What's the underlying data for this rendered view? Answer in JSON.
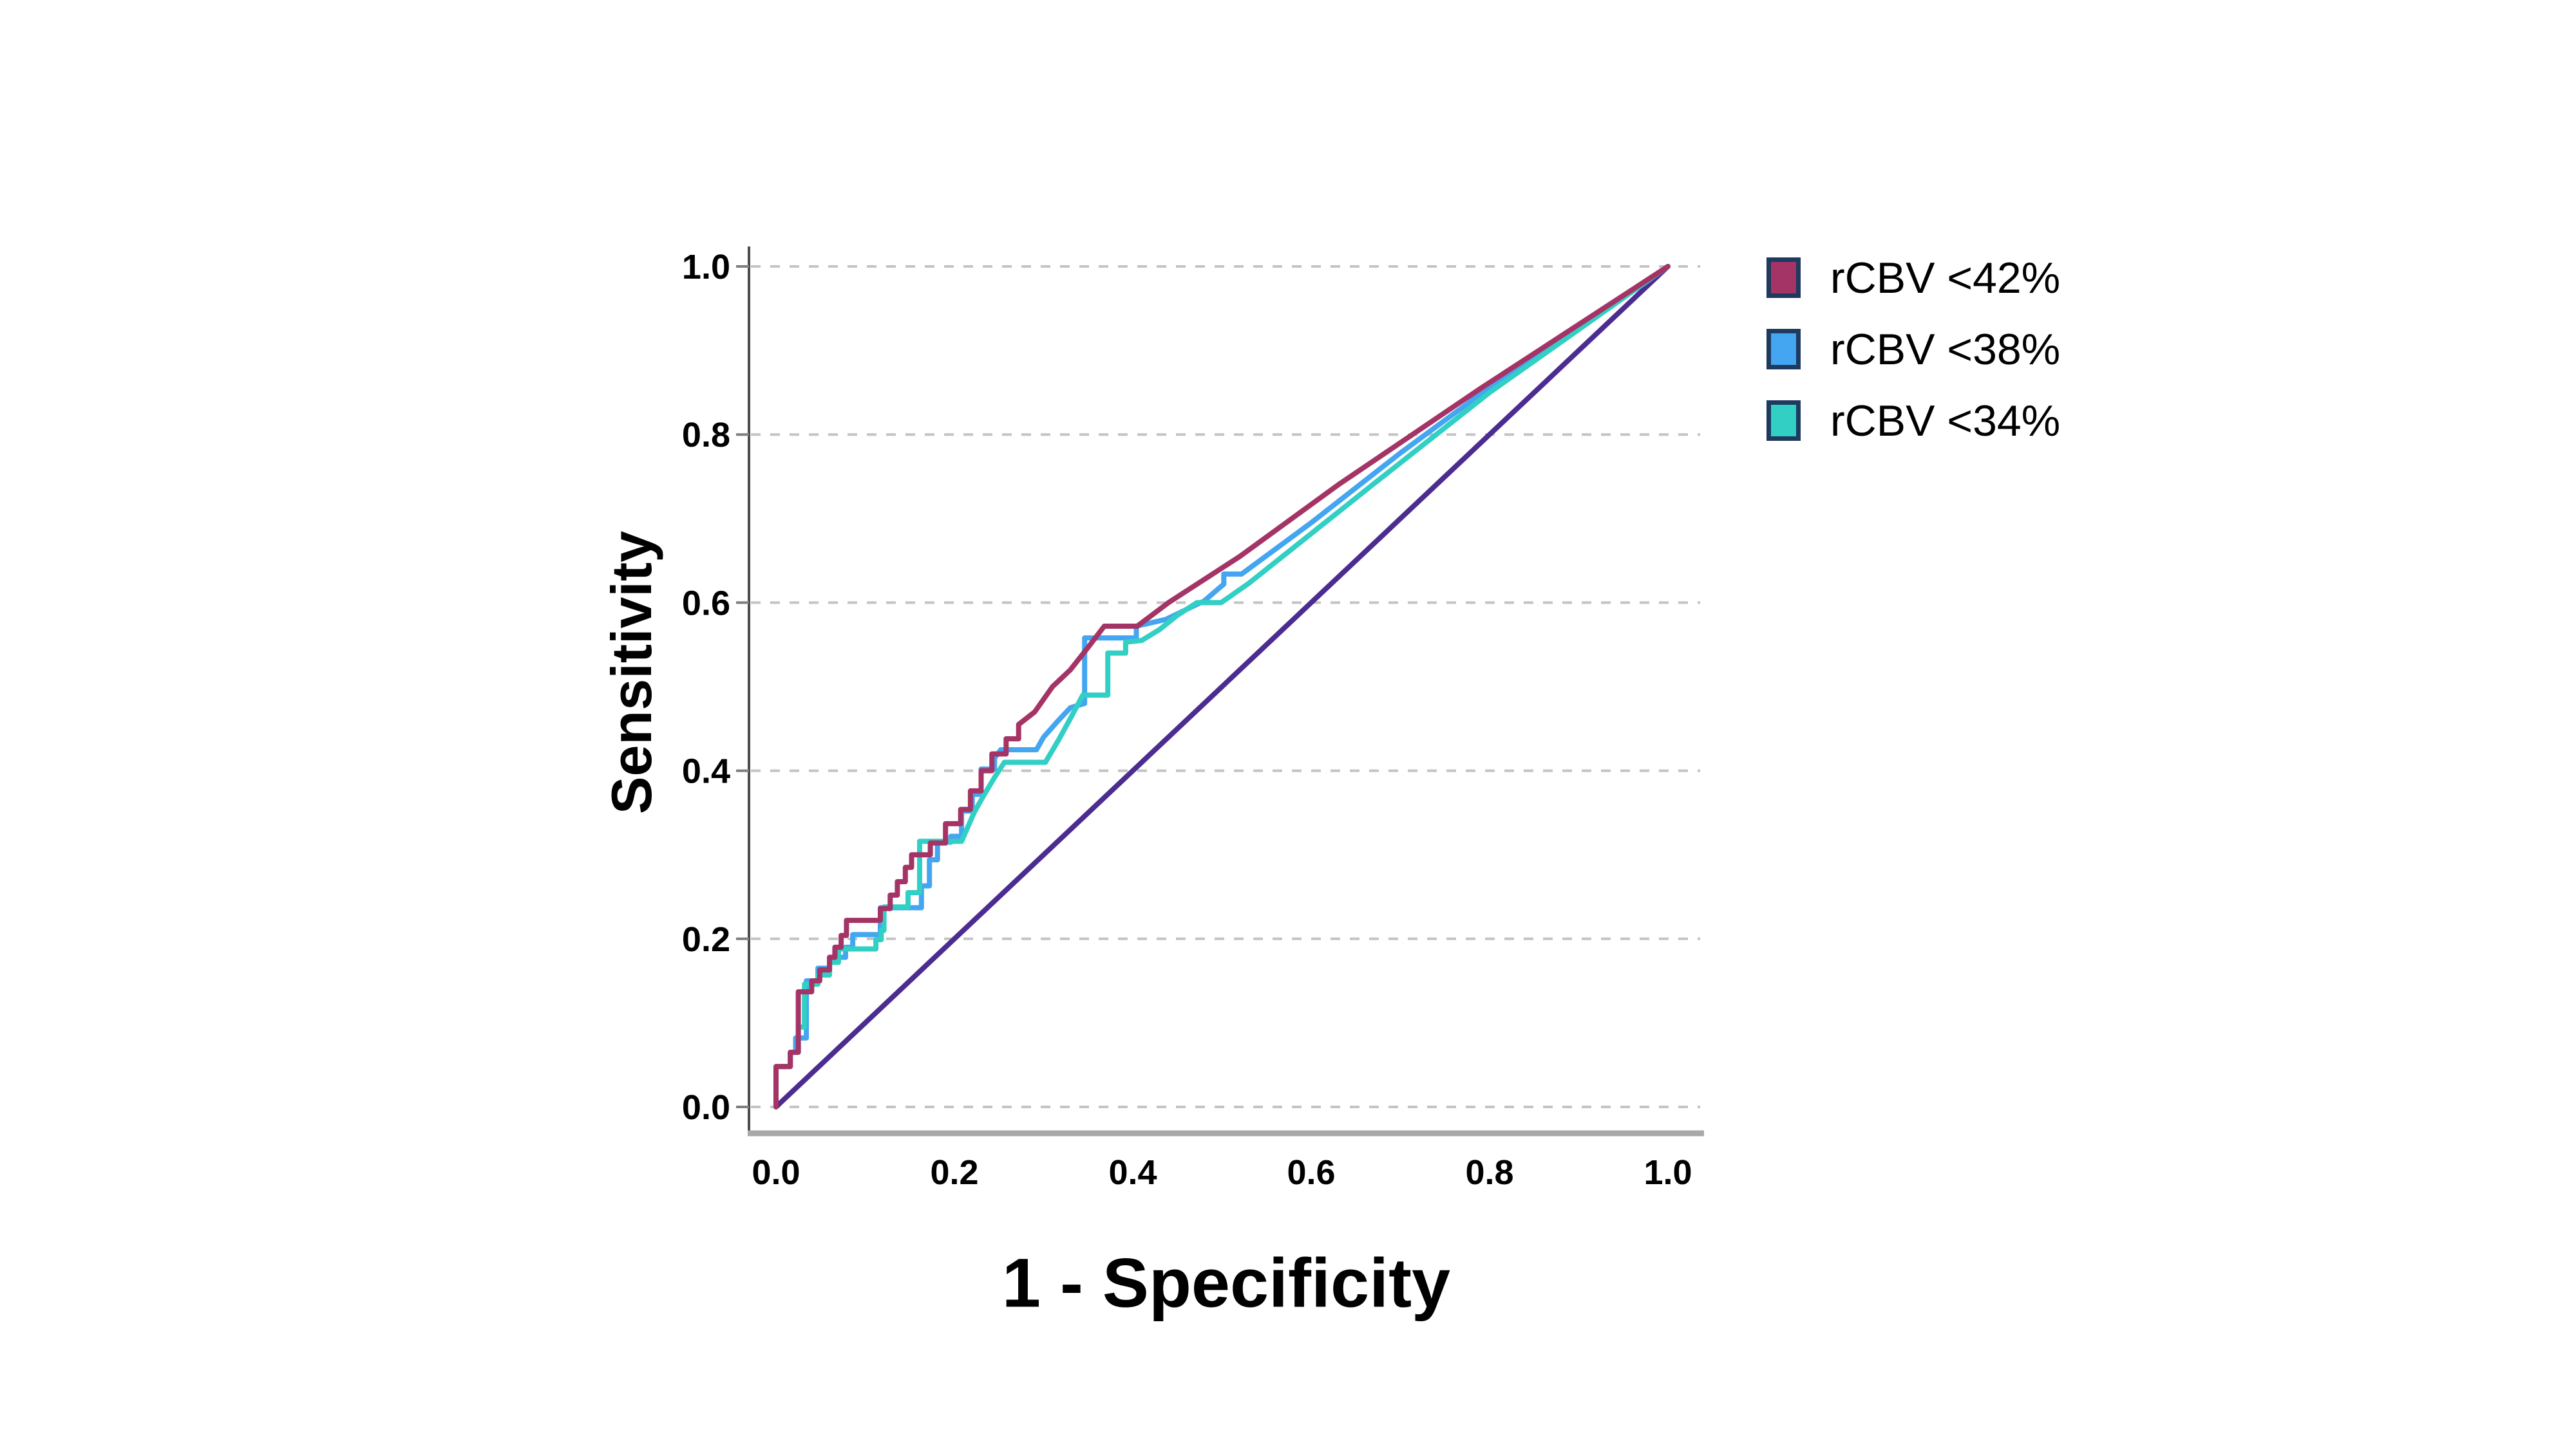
{
  "chart_data": {
    "type": "line",
    "subtype": "roc-curve",
    "title": "",
    "xlabel": "1 - Specificity",
    "ylabel": "Sensitivity",
    "xlim": [
      0.0,
      1.0
    ],
    "ylim": [
      0.0,
      1.0
    ],
    "x_tick_labels": [
      "0.0",
      "0.2",
      "0.4",
      "0.6",
      "0.8",
      "1.0"
    ],
    "y_tick_labels": [
      "0.0",
      "0.2",
      "0.4",
      "0.6",
      "0.8",
      "1.0"
    ],
    "grid": "horizontal dashed gridlines at every y tick",
    "legend_position": "right of plot, top",
    "series": [
      {
        "name": "rCBV <42%",
        "color": "#A43465",
        "points": [
          [
            0,
            0
          ],
          [
            0,
            0.048
          ],
          [
            0.016,
            0.048
          ],
          [
            0.016,
            0.065
          ],
          [
            0.025,
            0.065
          ],
          [
            0.025,
            0.137
          ],
          [
            0.04,
            0.137
          ],
          [
            0.04,
            0.15
          ],
          [
            0.049,
            0.15
          ],
          [
            0.049,
            0.163
          ],
          [
            0.06,
            0.163
          ],
          [
            0.06,
            0.178
          ],
          [
            0.066,
            0.178
          ],
          [
            0.066,
            0.19
          ],
          [
            0.073,
            0.19
          ],
          [
            0.073,
            0.204
          ],
          [
            0.079,
            0.204
          ],
          [
            0.079,
            0.222
          ],
          [
            0.117,
            0.222
          ],
          [
            0.117,
            0.236
          ],
          [
            0.128,
            0.236
          ],
          [
            0.128,
            0.252
          ],
          [
            0.136,
            0.252
          ],
          [
            0.136,
            0.268
          ],
          [
            0.145,
            0.268
          ],
          [
            0.145,
            0.285
          ],
          [
            0.152,
            0.285
          ],
          [
            0.152,
            0.3
          ],
          [
            0.173,
            0.3
          ],
          [
            0.173,
            0.314
          ],
          [
            0.19,
            0.314
          ],
          [
            0.19,
            0.337
          ],
          [
            0.207,
            0.337
          ],
          [
            0.207,
            0.354
          ],
          [
            0.218,
            0.354
          ],
          [
            0.218,
            0.376
          ],
          [
            0.23,
            0.376
          ],
          [
            0.23,
            0.4
          ],
          [
            0.242,
            0.4
          ],
          [
            0.242,
            0.42
          ],
          [
            0.258,
            0.42
          ],
          [
            0.258,
            0.438
          ],
          [
            0.272,
            0.438
          ],
          [
            0.272,
            0.455
          ],
          [
            0.29,
            0.47
          ],
          [
            0.31,
            0.5
          ],
          [
            0.33,
            0.52
          ],
          [
            0.35,
            0.547
          ],
          [
            0.368,
            0.572
          ],
          [
            0.405,
            0.572
          ],
          [
            0.44,
            0.6
          ],
          [
            0.52,
            0.655
          ],
          [
            0.63,
            0.74
          ],
          [
            0.79,
            0.855
          ],
          [
            1,
            1
          ]
        ]
      },
      {
        "name": "rCBV <38%",
        "color": "#44A6F0",
        "points": [
          [
            0,
            0
          ],
          [
            0,
            0.048
          ],
          [
            0.016,
            0.048
          ],
          [
            0.016,
            0.065
          ],
          [
            0.022,
            0.065
          ],
          [
            0.022,
            0.082
          ],
          [
            0.034,
            0.082
          ],
          [
            0.034,
            0.15
          ],
          [
            0.047,
            0.15
          ],
          [
            0.047,
            0.165
          ],
          [
            0.06,
            0.165
          ],
          [
            0.06,
            0.178
          ],
          [
            0.078,
            0.178
          ],
          [
            0.078,
            0.19
          ],
          [
            0.086,
            0.19
          ],
          [
            0.086,
            0.205
          ],
          [
            0.117,
            0.205
          ],
          [
            0.117,
            0.237
          ],
          [
            0.163,
            0.237
          ],
          [
            0.163,
            0.263
          ],
          [
            0.172,
            0.263
          ],
          [
            0.172,
            0.294
          ],
          [
            0.181,
            0.294
          ],
          [
            0.181,
            0.315
          ],
          [
            0.196,
            0.315
          ],
          [
            0.196,
            0.322
          ],
          [
            0.208,
            0.322
          ],
          [
            0.208,
            0.352
          ],
          [
            0.22,
            0.352
          ],
          [
            0.22,
            0.372
          ],
          [
            0.23,
            0.372
          ],
          [
            0.23,
            0.402
          ],
          [
            0.245,
            0.402
          ],
          [
            0.245,
            0.415
          ],
          [
            0.252,
            0.425
          ],
          [
            0.292,
            0.425
          ],
          [
            0.3,
            0.44
          ],
          [
            0.315,
            0.458
          ],
          [
            0.33,
            0.475
          ],
          [
            0.346,
            0.48
          ],
          [
            0.346,
            0.558
          ],
          [
            0.404,
            0.558
          ],
          [
            0.404,
            0.572
          ],
          [
            0.437,
            0.58
          ],
          [
            0.48,
            0.602
          ],
          [
            0.502,
            0.622
          ],
          [
            0.502,
            0.634
          ],
          [
            0.522,
            0.634
          ],
          [
            0.6,
            0.695
          ],
          [
            0.7,
            0.778
          ],
          [
            0.85,
            0.895
          ],
          [
            1,
            1
          ]
        ]
      },
      {
        "name": "rCBV <34%",
        "color": "#31CFC4",
        "points": [
          [
            0,
            0
          ],
          [
            0,
            0.048
          ],
          [
            0.016,
            0.048
          ],
          [
            0.016,
            0.065
          ],
          [
            0.025,
            0.065
          ],
          [
            0.025,
            0.095
          ],
          [
            0.032,
            0.095
          ],
          [
            0.032,
            0.146
          ],
          [
            0.047,
            0.146
          ],
          [
            0.047,
            0.157
          ],
          [
            0.06,
            0.157
          ],
          [
            0.06,
            0.172
          ],
          [
            0.07,
            0.172
          ],
          [
            0.07,
            0.188
          ],
          [
            0.112,
            0.188
          ],
          [
            0.112,
            0.199
          ],
          [
            0.118,
            0.199
          ],
          [
            0.118,
            0.21
          ],
          [
            0.121,
            0.21
          ],
          [
            0.121,
            0.238
          ],
          [
            0.148,
            0.238
          ],
          [
            0.148,
            0.255
          ],
          [
            0.161,
            0.255
          ],
          [
            0.161,
            0.316
          ],
          [
            0.208,
            0.316
          ],
          [
            0.222,
            0.35
          ],
          [
            0.232,
            0.369
          ],
          [
            0.245,
            0.392
          ],
          [
            0.256,
            0.41
          ],
          [
            0.302,
            0.41
          ],
          [
            0.317,
            0.437
          ],
          [
            0.33,
            0.462
          ],
          [
            0.344,
            0.49
          ],
          [
            0.372,
            0.49
          ],
          [
            0.372,
            0.54
          ],
          [
            0.392,
            0.54
          ],
          [
            0.392,
            0.553
          ],
          [
            0.41,
            0.555
          ],
          [
            0.43,
            0.568
          ],
          [
            0.45,
            0.585
          ],
          [
            0.472,
            0.6
          ],
          [
            0.499,
            0.6
          ],
          [
            0.53,
            0.623
          ],
          [
            0.671,
            0.742
          ],
          [
            0.8,
            0.85
          ],
          [
            1,
            1
          ]
        ]
      }
    ],
    "reference_line": {
      "name": "chance diagonal",
      "color": "#4C2C90",
      "points": [
        [
          0,
          0
        ],
        [
          1,
          1
        ]
      ]
    }
  },
  "styles": {
    "background": "#FFFFFF",
    "gridline_color": "#C4C4C4",
    "y_axis_color": "#4D4D4D",
    "x_axis_color": "#A8A8A8",
    "tick_mark_color": "#7F7F7F",
    "text_color": "#000000",
    "legend_swatch_border": "#1E3A5F"
  }
}
